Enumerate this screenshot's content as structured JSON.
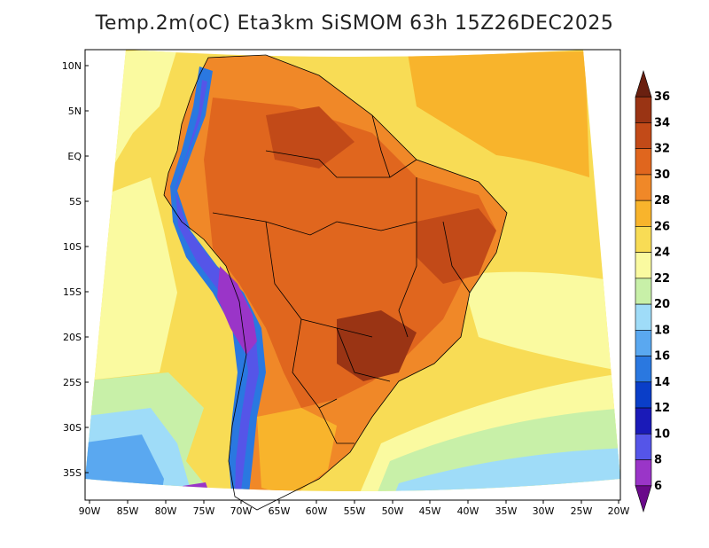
{
  "title": "Temp.2m(oC) Eta3km SiSMOM 63h 15Z26DEC2025",
  "map": {
    "lat_labels": [
      "10N",
      "5N",
      "EQ",
      "5S",
      "10S",
      "15S",
      "20S",
      "25S",
      "30S",
      "35S"
    ],
    "lon_labels": [
      "90W",
      "85W",
      "80W",
      "75W",
      "70W",
      "65W",
      "60W",
      "55W",
      "50W",
      "45W",
      "40W",
      "35W",
      "30W",
      "25W",
      "20W"
    ]
  },
  "colorbar": {
    "labels": [
      "6",
      "8",
      "10",
      "12",
      "14",
      "16",
      "18",
      "20",
      "22",
      "24",
      "26",
      "28",
      "30",
      "32",
      "34",
      "36"
    ],
    "colors": [
      "#6a0a8a",
      "#9a35c8",
      "#5555e8",
      "#1a1ab8",
      "#0a3ec8",
      "#2a78e0",
      "#5aa8f0",
      "#9fdcf8",
      "#c8f0a8",
      "#fafaa0",
      "#f8dc55",
      "#f8b42c",
      "#f08828",
      "#e0661e",
      "#c24a18",
      "#9a3414",
      "#6a2010"
    ]
  }
}
